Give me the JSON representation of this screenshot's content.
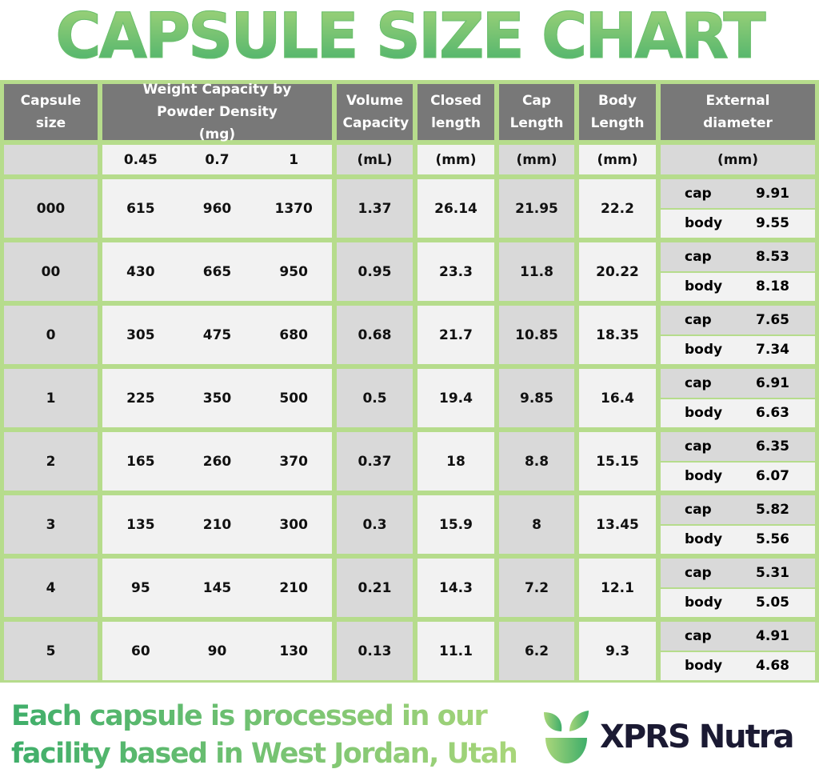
{
  "title": "CAPSULE SIZE CHART",
  "headers": {
    "size": "Capsule size",
    "weight": "Weight Capacity by Powder Density (mg)",
    "volume": "Volume Capacity",
    "closed": "Closed length",
    "cap": "Cap Length",
    "body": "Body Length",
    "ext": "External diameter"
  },
  "units": {
    "size": "",
    "densities": [
      "0.45",
      "0.7",
      "1"
    ],
    "volume": "(mL)",
    "closed": "(mm)",
    "cap": "(mm)",
    "body": "(mm)",
    "ext": "(mm)"
  },
  "labels": {
    "cap": "cap",
    "body": "body"
  },
  "rows": [
    {
      "size": "000",
      "w": [
        "615",
        "960",
        "1370"
      ],
      "vol": "1.37",
      "closed": "26.14",
      "cap": "21.95",
      "body": "22.2",
      "ext_cap": "9.91",
      "ext_body": "9.55"
    },
    {
      "size": "00",
      "w": [
        "430",
        "665",
        "950"
      ],
      "vol": "0.95",
      "closed": "23.3",
      "cap": "11.8",
      "body": "20.22",
      "ext_cap": "8.53",
      "ext_body": "8.18"
    },
    {
      "size": "0",
      "w": [
        "305",
        "475",
        "680"
      ],
      "vol": "0.68",
      "closed": "21.7",
      "cap": "10.85",
      "body": "18.35",
      "ext_cap": "7.65",
      "ext_body": "7.34"
    },
    {
      "size": "1",
      "w": [
        "225",
        "350",
        "500"
      ],
      "vol": "0.5",
      "closed": "19.4",
      "cap": "9.85",
      "body": "16.4",
      "ext_cap": "6.91",
      "ext_body": "6.63"
    },
    {
      "size": "2",
      "w": [
        "165",
        "260",
        "370"
      ],
      "vol": "0.37",
      "closed": "18",
      "cap": "8.8",
      "body": "15.15",
      "ext_cap": "6.35",
      "ext_body": "6.07"
    },
    {
      "size": "3",
      "w": [
        "135",
        "210",
        "300"
      ],
      "vol": "0.3",
      "closed": "15.9",
      "cap": "8",
      "body": "13.45",
      "ext_cap": "5.82",
      "ext_body": "5.56"
    },
    {
      "size": "4",
      "w": [
        "95",
        "145",
        "210"
      ],
      "vol": "0.21",
      "closed": "14.3",
      "cap": "7.2",
      "body": "12.1",
      "ext_cap": "5.31",
      "ext_body": "5.05"
    },
    {
      "size": "5",
      "w": [
        "60",
        "90",
        "130"
      ],
      "vol": "0.13",
      "closed": "11.1",
      "cap": "6.2",
      "body": "9.3",
      "ext_cap": "4.91",
      "ext_body": "4.68"
    }
  ],
  "footer": {
    "line1": "Each capsule is processed in our",
    "line2": "facility based in West Jordan, Utah"
  },
  "brand": {
    "name": "XPRS Nutra",
    "icon": "leaf-bowl-logo"
  },
  "colors": {
    "header": "#787878",
    "border": "#b6dc8c",
    "green": "#3fae6a"
  }
}
